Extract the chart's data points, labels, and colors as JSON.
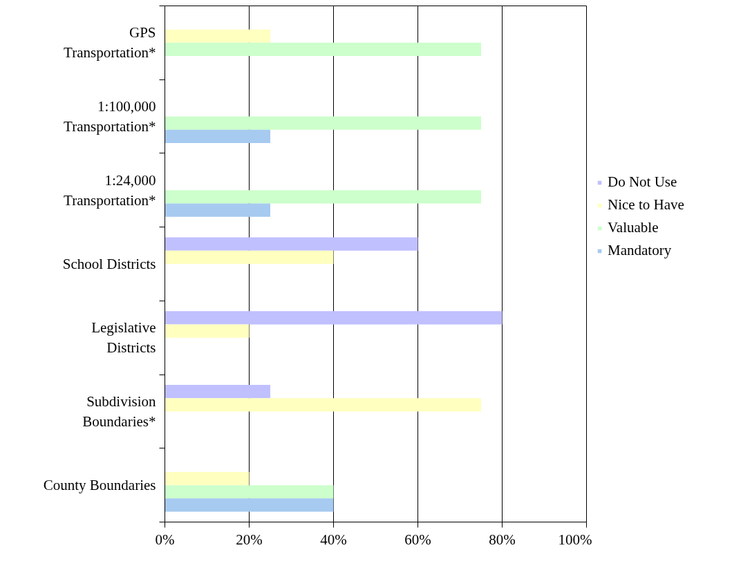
{
  "chart_data": {
    "type": "bar",
    "orientation": "horizontal",
    "categories": [
      "GPS Transportation*",
      "1:100,000 Transportation*",
      "1:24,000 Transportation*",
      "School Districts",
      "Legislative Districts",
      "Subdivision Boundaries*",
      "County Boundaries"
    ],
    "series": [
      {
        "name": "Do Not Use",
        "color": "#c0c0ff",
        "values": [
          null,
          null,
          null,
          60,
          80,
          25,
          null
        ]
      },
      {
        "name": "Nice to Have",
        "color": "#ffffc0",
        "values": [
          25,
          null,
          null,
          40,
          20,
          75,
          20
        ]
      },
      {
        "name": "Valuable",
        "color": "#ccffcc",
        "values": [
          75,
          75,
          75,
          null,
          null,
          null,
          40
        ]
      },
      {
        "name": "Mandatory",
        "color": "#a6caf0",
        "values": [
          null,
          25,
          25,
          null,
          null,
          null,
          40
        ]
      }
    ],
    "xlim": [
      0,
      100
    ],
    "xticks": [
      {
        "value": 0,
        "label": "0%"
      },
      {
        "value": 20,
        "label": "20%"
      },
      {
        "value": 40,
        "label": "40%"
      },
      {
        "value": 60,
        "label": "60%"
      },
      {
        "value": 80,
        "label": "80%"
      },
      {
        "value": 100,
        "label": "100%"
      }
    ],
    "grid": "x",
    "legend": "right"
  }
}
